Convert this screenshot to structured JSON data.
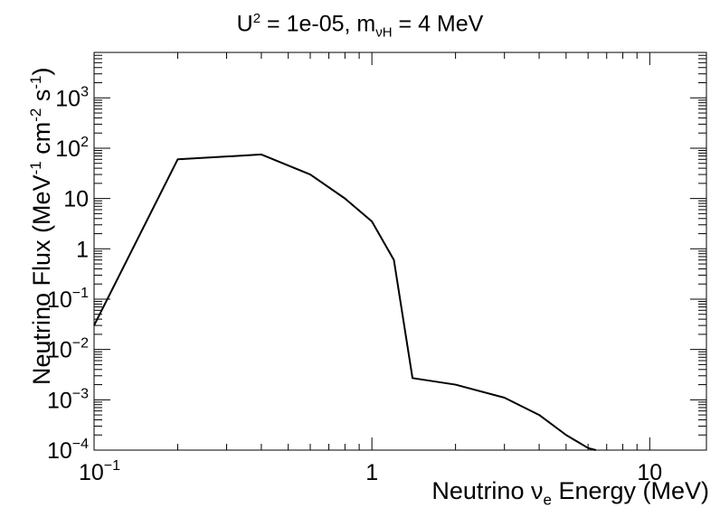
{
  "chart_data": {
    "type": "line",
    "title": {
      "u": "U",
      "u_exp": "2",
      "eq1": " = 1e-05, m",
      "m_sub": "νH",
      "eq2": " = 4 MeV"
    },
    "xlabel": {
      "prefix": "Neutrino ν",
      "sub": "e",
      "suffix": " Energy (MeV)"
    },
    "ylabel": {
      "prefix": "Neutrino Flux (MeV",
      "exp1": "-1",
      "mid": " cm",
      "exp2": "-2",
      "mid2": " s",
      "exp3": "-1",
      "suffix": ")"
    },
    "x_scale": "log",
    "y_scale": "log",
    "xlim": [
      0.1,
      16
    ],
    "ylim": [
      0.0001,
      8000
    ],
    "x_tick_labels": [
      {
        "value": 0.1,
        "base": "10",
        "exp": "−1"
      },
      {
        "value": 1,
        "base": "1",
        "exp": ""
      },
      {
        "value": 10,
        "base": "10",
        "exp": ""
      }
    ],
    "y_tick_labels": [
      {
        "value": 0.0001,
        "base": "10",
        "exp": "−4"
      },
      {
        "value": 0.001,
        "base": "10",
        "exp": "−3"
      },
      {
        "value": 0.01,
        "base": "10",
        "exp": "−2"
      },
      {
        "value": 0.1,
        "base": "10",
        "exp": "−1"
      },
      {
        "value": 1,
        "base": "1",
        "exp": ""
      },
      {
        "value": 10,
        "base": "10",
        "exp": ""
      },
      {
        "value": 100,
        "base": "10",
        "exp": "2"
      },
      {
        "value": 1000,
        "base": "10",
        "exp": "3"
      }
    ],
    "grid": false,
    "legend": "none",
    "series": [
      {
        "color": "#000000",
        "x": [
          0.1,
          0.2,
          0.4,
          0.6,
          0.8,
          1.0,
          1.2,
          1.4,
          2.0,
          3.0,
          4.0,
          5.0,
          6.0,
          6.4
        ],
        "y": [
          0.03,
          60,
          75,
          30,
          10,
          3.5,
          0.6,
          0.0027,
          0.002,
          0.0011,
          0.0005,
          0.0002,
          0.00011,
          0.0001
        ]
      }
    ]
  }
}
